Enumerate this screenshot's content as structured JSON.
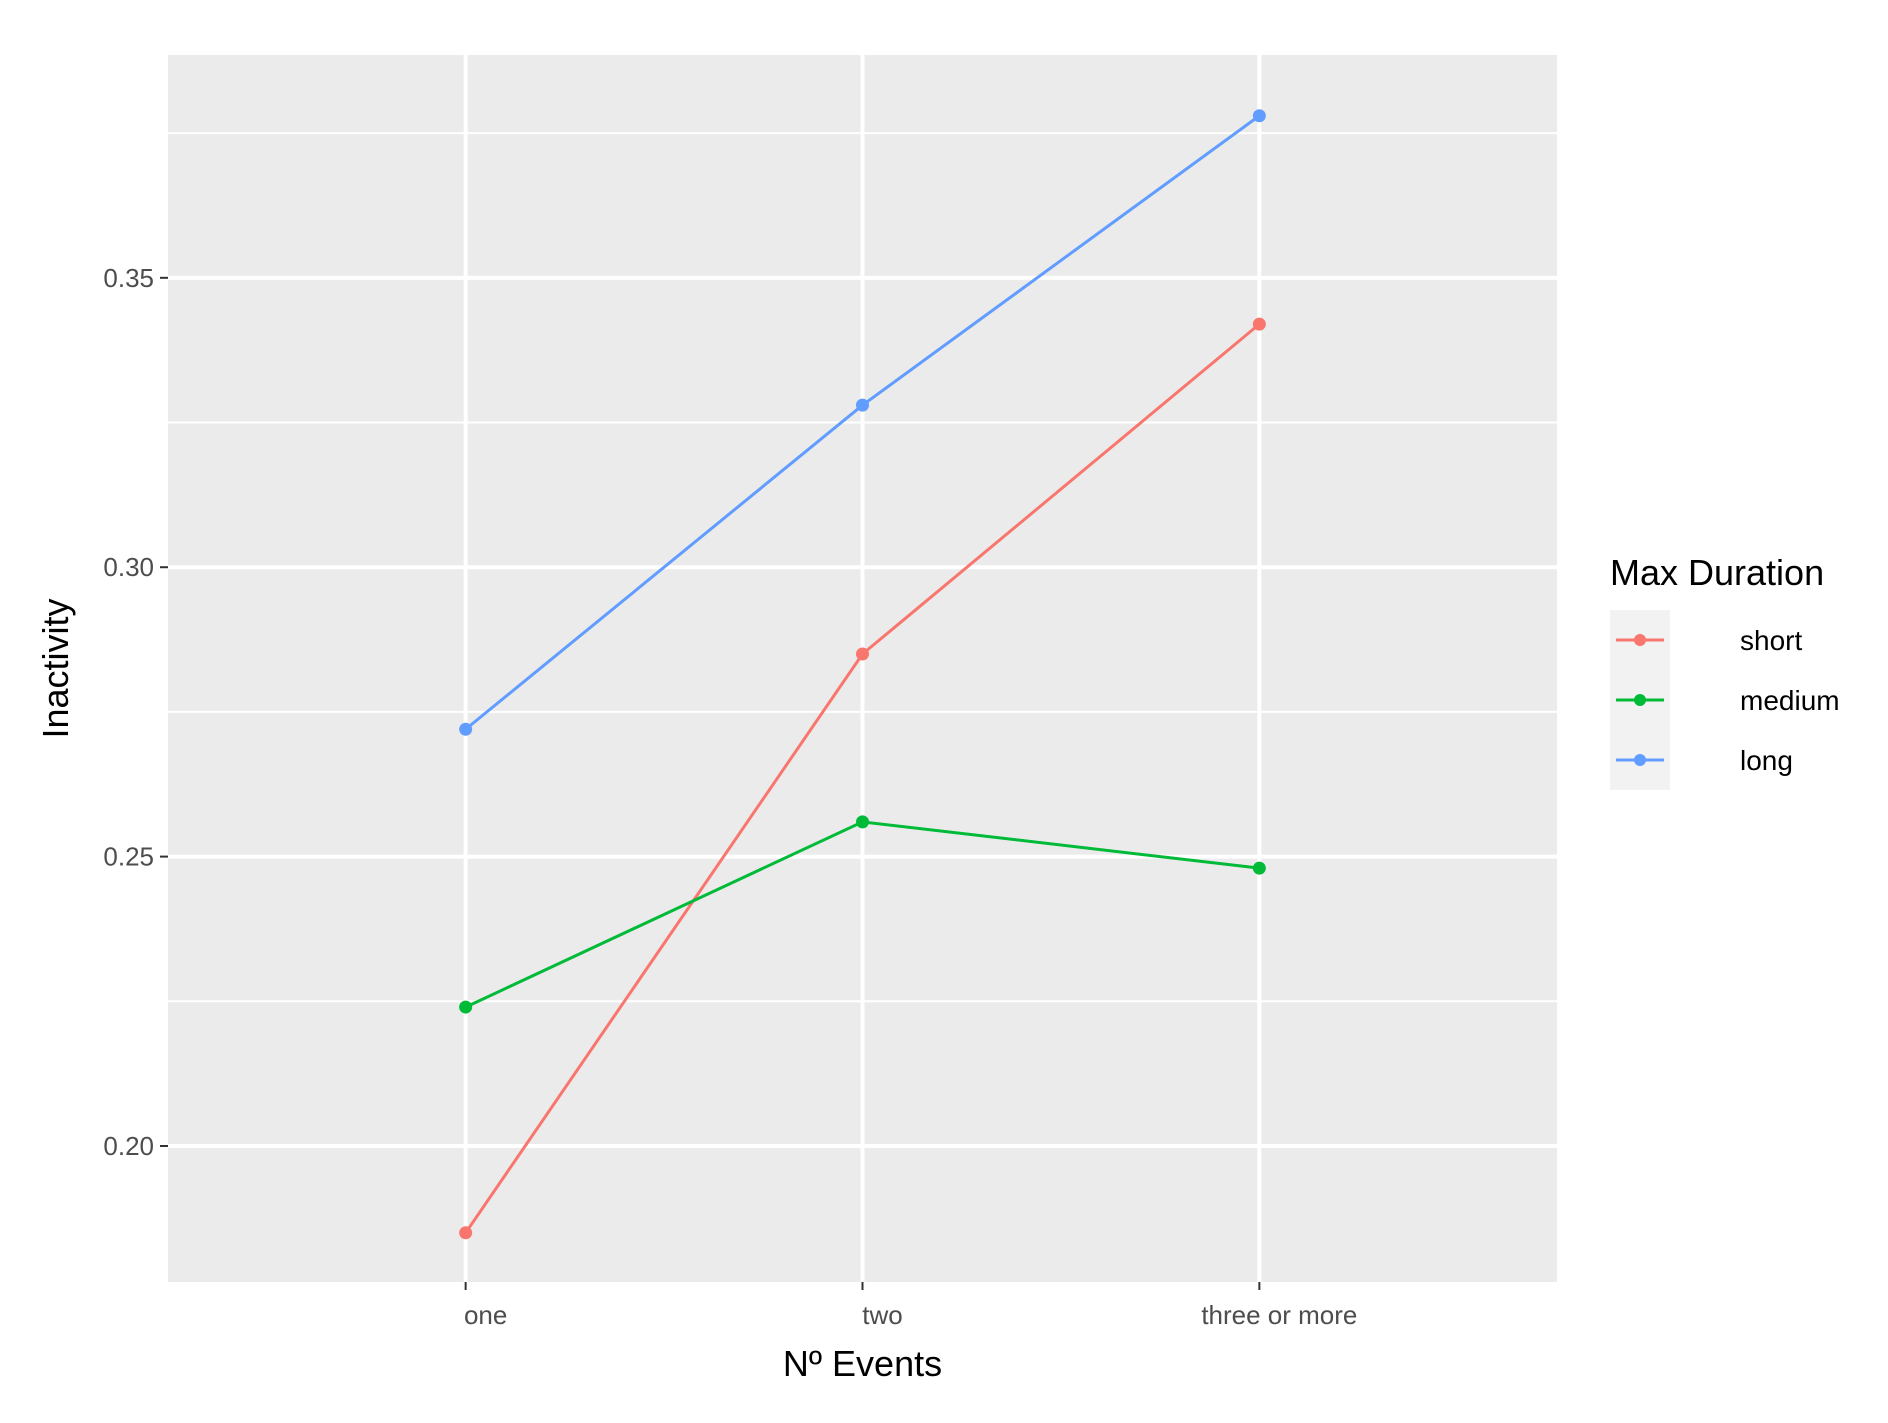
{
  "chart_data": {
    "type": "line",
    "title": "",
    "xlabel": "Nº Events",
    "ylabel": "Inactivity",
    "categories": [
      "one",
      "two",
      "three or more"
    ],
    "ylim": [
      0.1765,
      0.3885
    ],
    "yticks": [
      0.2,
      0.25,
      0.3,
      0.35
    ],
    "ytick_labels": [
      "0.20",
      "0.25",
      "0.30",
      "0.35"
    ],
    "grid": true,
    "legend": {
      "title": "Max Duration",
      "position": "right"
    },
    "series": [
      {
        "name": "short",
        "color": "#F8766D",
        "values": [
          0.185,
          0.285,
          0.342
        ]
      },
      {
        "name": "medium",
        "color": "#00BA38",
        "values": [
          0.224,
          0.256,
          0.248
        ]
      },
      {
        "name": "long",
        "color": "#619CFF",
        "values": [
          0.272,
          0.328,
          0.378
        ]
      }
    ],
    "panel_background": "#EBEBEB",
    "grid_color": "#FFFFFF"
  }
}
